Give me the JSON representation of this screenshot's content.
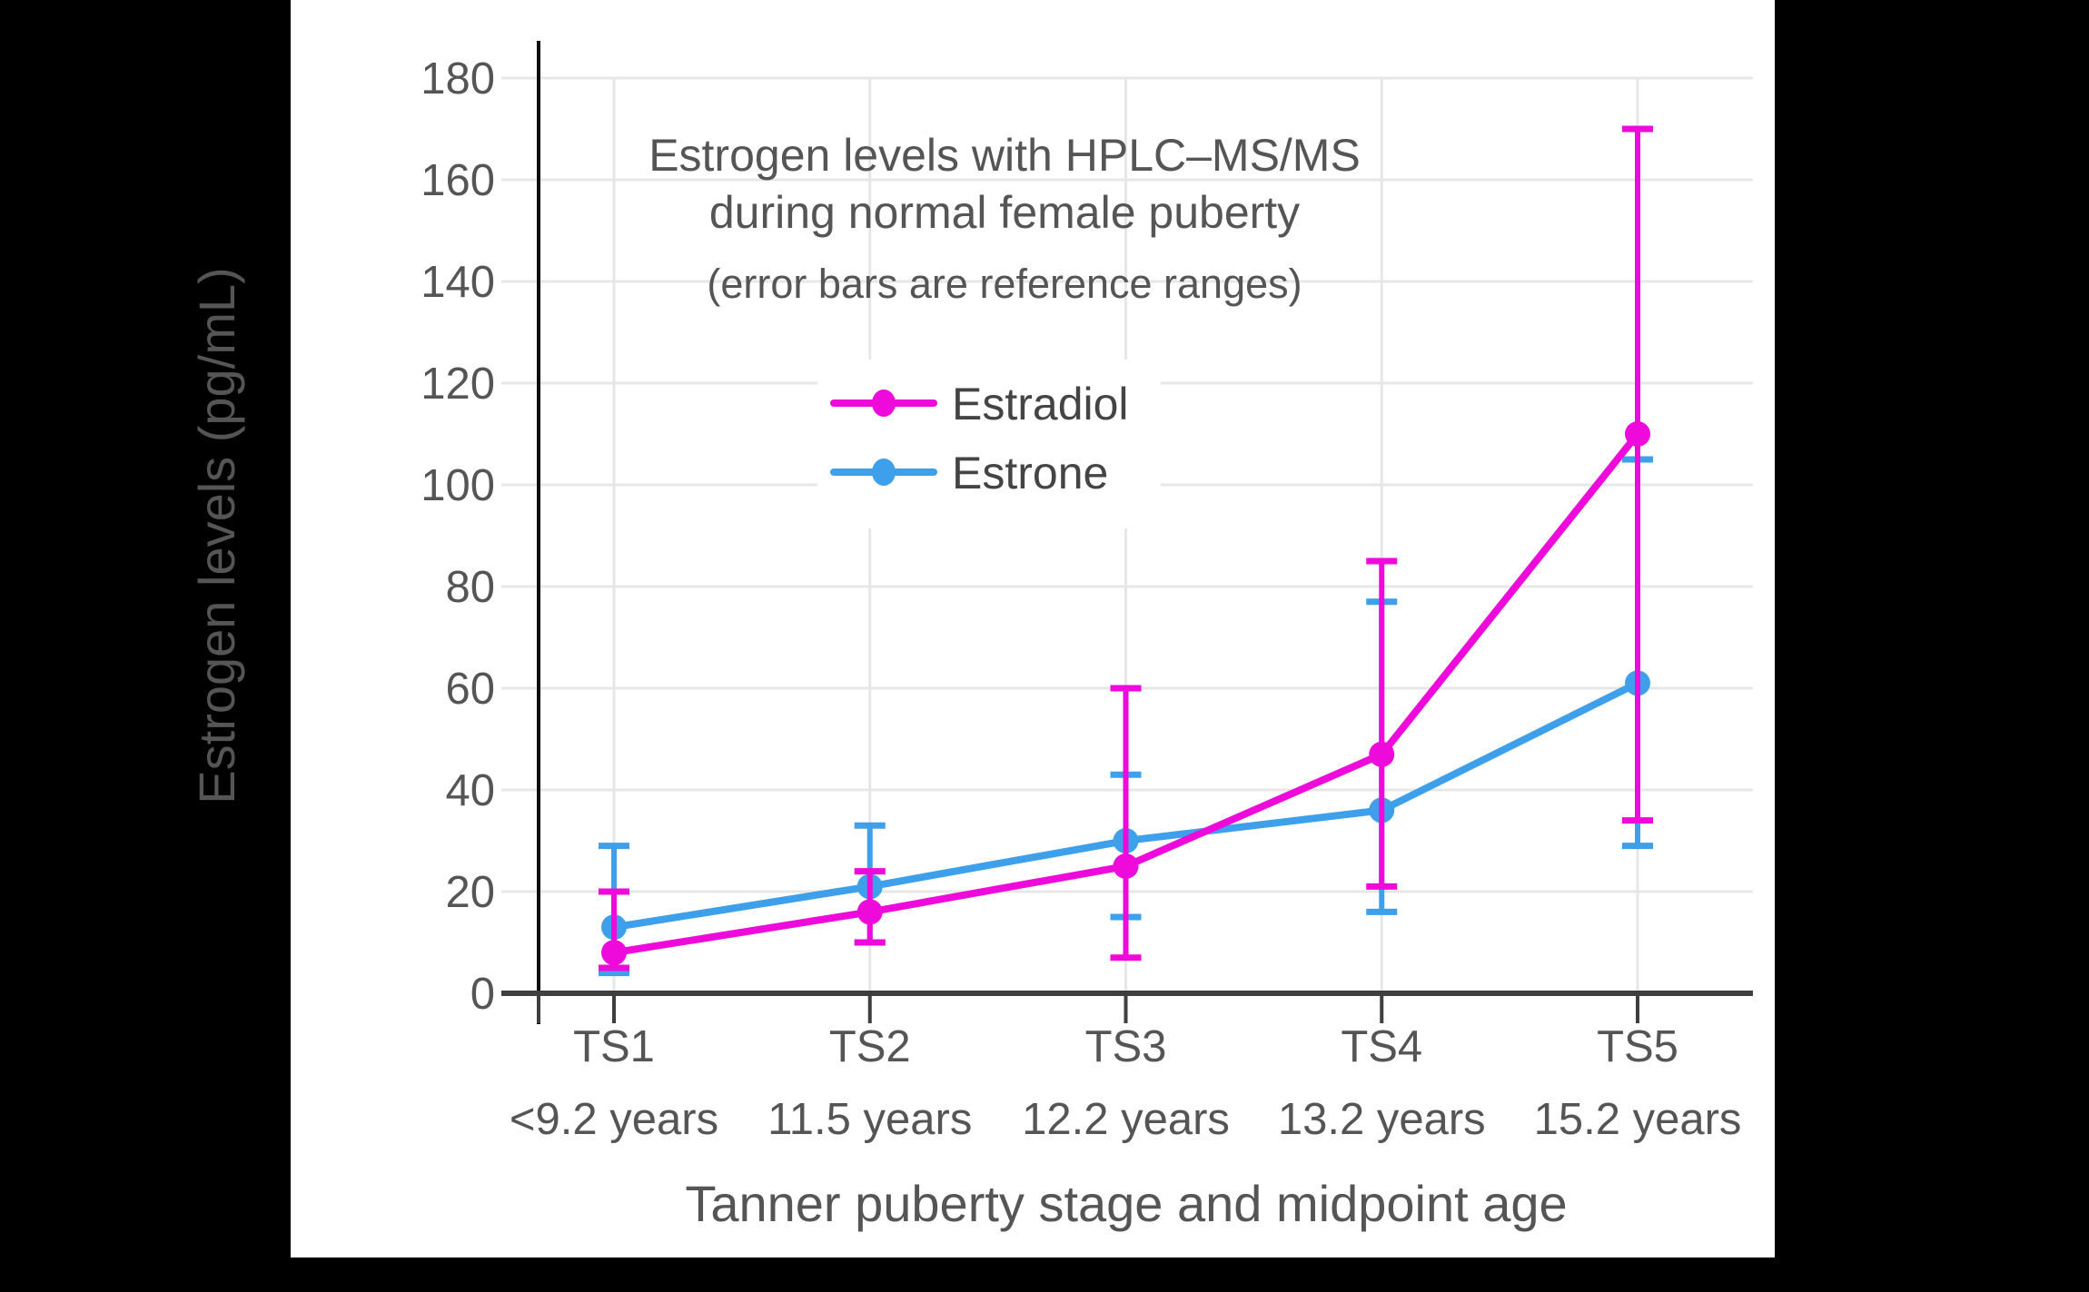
{
  "figure": {
    "background": "#000000",
    "panel_background": "#ffffff"
  },
  "chart_data": {
    "type": "line",
    "title_line1": "Estrogen levels with HPLC–MS/MS",
    "title_line2": "during normal female puberty",
    "subtitle": "(error bars are reference ranges)",
    "xlabel": "Tanner puberty stage and midpoint age",
    "ylabel": "Estrogen levels (pg/mL)",
    "categories": [
      "TS1",
      "TS2",
      "TS3",
      "TS4",
      "TS5"
    ],
    "category_sublabels": [
      "<9.2 years",
      "11.5 years",
      "12.2 years",
      "13.2 years",
      "15.2 years"
    ],
    "yticks": [
      0,
      20,
      40,
      60,
      80,
      100,
      120,
      140,
      160,
      180
    ],
    "ylim": [
      0,
      190
    ],
    "grid": true,
    "legend_position": "upper-left-inside",
    "error_bar_meaning": "reference ranges",
    "series": [
      {
        "name": "Estradiol",
        "color": "#ed0ada",
        "values": [
          8,
          16,
          25,
          47,
          110
        ],
        "range_low": [
          5,
          10,
          7,
          21,
          34
        ],
        "range_high": [
          20,
          24,
          60,
          85,
          170
        ]
      },
      {
        "name": "Estrone",
        "color": "#3ea0eb",
        "values": [
          13,
          21,
          30,
          36,
          61
        ],
        "range_low": [
          4,
          10,
          15,
          16,
          29
        ],
        "range_high": [
          29,
          33,
          43,
          77,
          105
        ]
      }
    ],
    "text_color": "#555555",
    "axis_color": "#3f3f3f",
    "yaxis_line_color": "#0a0a0a",
    "grid_color": "#e7e7e7"
  }
}
